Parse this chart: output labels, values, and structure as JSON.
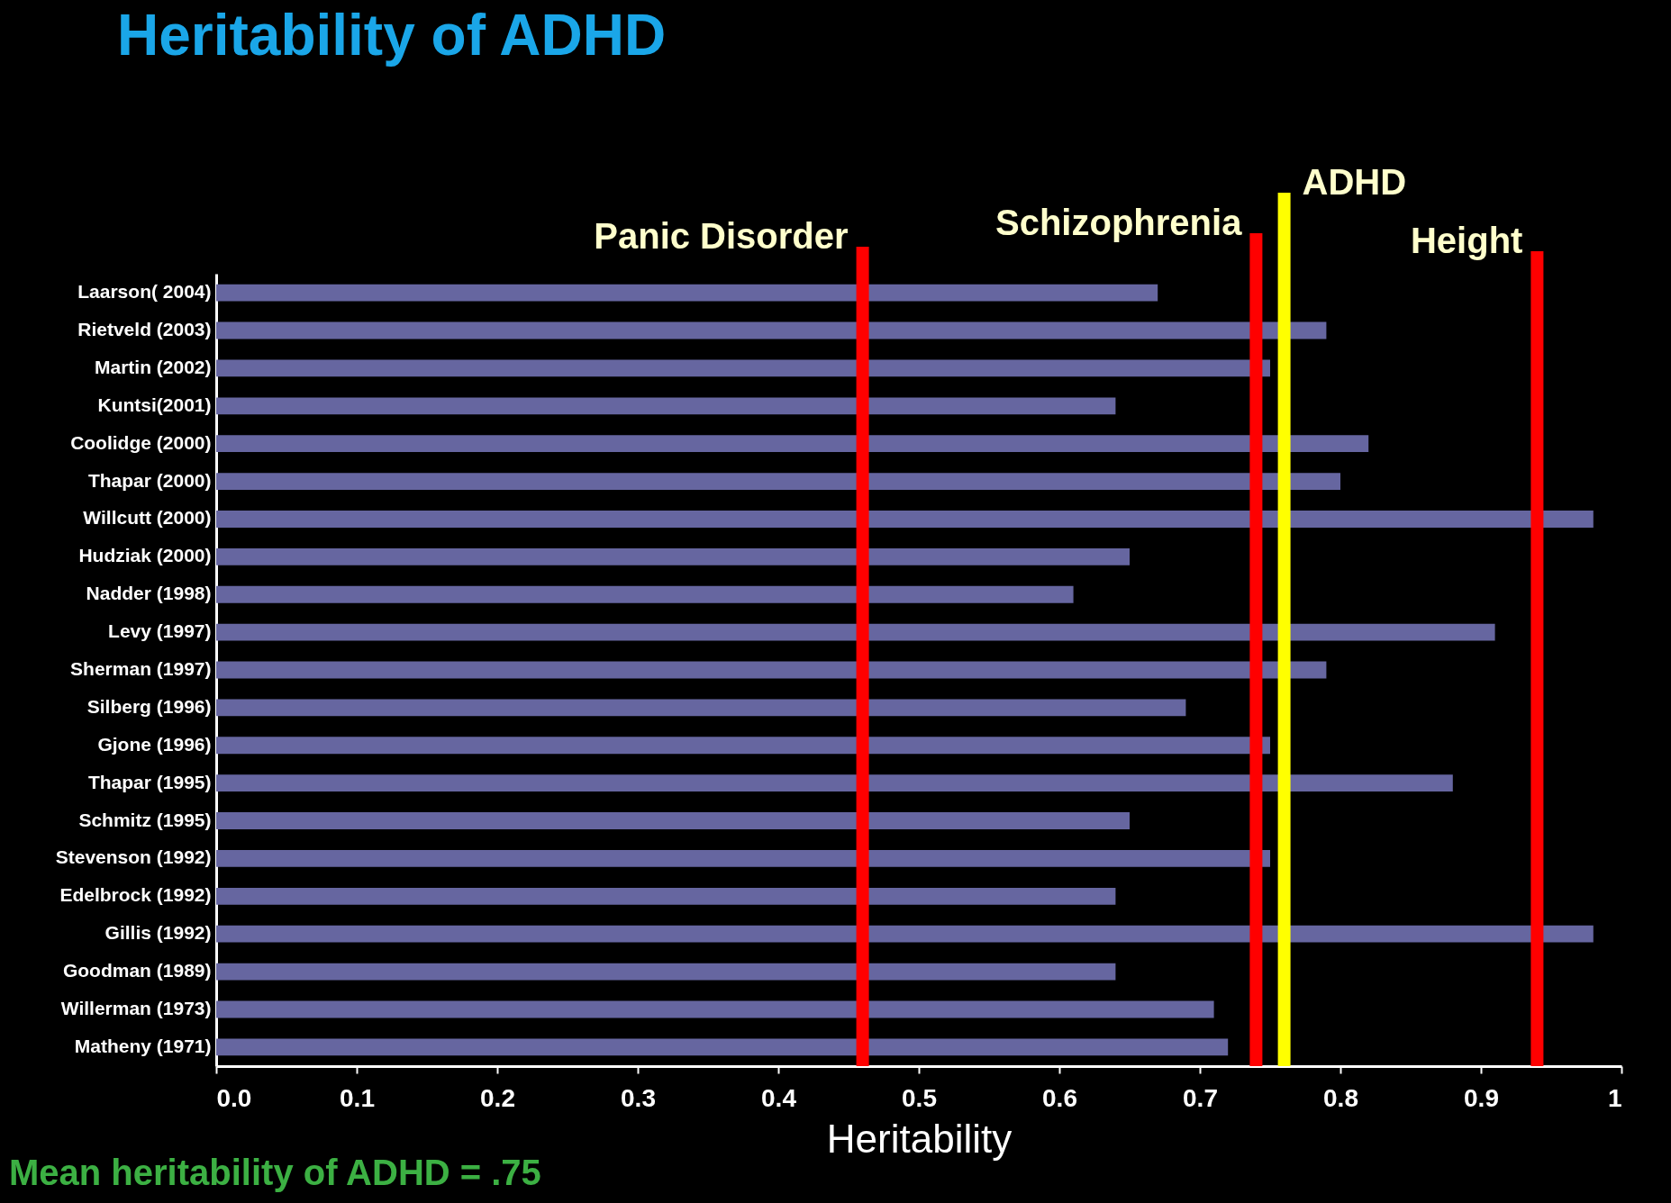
{
  "chart_data": {
    "type": "bar",
    "orientation": "horizontal",
    "title": "Heritability of ADHD",
    "xlabel": "Heritability",
    "categories": [
      "Laarson( 2004)",
      "Rietveld (2003)",
      "Martin (2002)",
      "Kuntsi(2001)",
      "Coolidge (2000)",
      "Thapar (2000)",
      "Willcutt (2000)",
      "Hudziak (2000)",
      "Nadder (1998)",
      "Levy (1997)",
      "Sherman (1997)",
      "Silberg (1996)",
      "Gjone (1996)",
      "Thapar (1995)",
      "Schmitz (1995)",
      "Stevenson (1992)",
      "Edelbrock (1992)",
      "Gillis (1992)",
      "Goodman (1989)",
      "Willerman (1973)",
      "Matheny (1971)"
    ],
    "values": [
      0.67,
      0.79,
      0.75,
      0.64,
      0.82,
      0.8,
      0.98,
      0.65,
      0.61,
      0.91,
      0.79,
      0.69,
      0.75,
      0.88,
      0.65,
      0.75,
      0.64,
      0.98,
      0.64,
      0.71,
      0.72
    ],
    "color": "#6666a0",
    "xlim": [
      0,
      1
    ],
    "xticks": [
      {
        "value": 0,
        "label": "0.0"
      },
      0.1,
      0.2,
      0.3,
      0.4,
      0.5,
      0.6,
      0.7,
      0.8,
      0.9,
      1
    ],
    "ref_lines": [
      {
        "axis": "x",
        "value": 0.46,
        "label": "Panic Disorder",
        "color": "#ff0000"
      },
      {
        "axis": "x",
        "value": 0.74,
        "label": "Schizophrenia",
        "color": "#ff0000"
      },
      {
        "axis": "x",
        "value": 0.76,
        "label": "ADHD",
        "color": "#ffff00"
      },
      {
        "axis": "x",
        "value": 0.94,
        "label": "Height",
        "color": "#ff0000"
      }
    ],
    "annotations": [
      "Mean heritability of ADHD = .75"
    ]
  }
}
